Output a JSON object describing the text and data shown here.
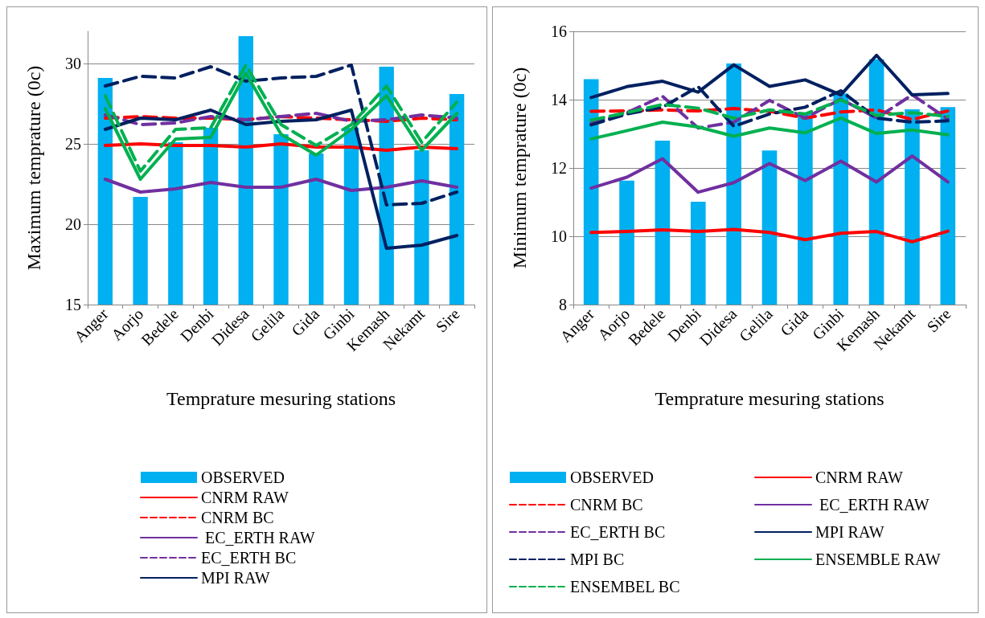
{
  "chart_data": [
    {
      "type": "bar",
      "xlabel": "Temprature mesuring stations",
      "ylabel": "Maximum temprature (0c)",
      "categories": [
        "Anger",
        "Aorjo",
        "Bedele",
        "Denbi",
        "Didesa",
        "Gelila",
        "Gida",
        "Ginbi",
        "Kemash",
        "Nekamt",
        "Sire"
      ],
      "ylim": [
        15,
        32
      ],
      "yticks": [
        15,
        20,
        25,
        30
      ],
      "grid": "y",
      "legend": "bottom",
      "marker": "none",
      "series": [
        {
          "name": "OBSERVED",
          "color": "#00b0f0",
          "values": [
            29.1,
            21.7,
            25.1,
            26.0,
            31.7,
            25.6,
            24.4,
            26.0,
            29.8,
            24.6,
            28.1
          ]
        },
        {
          "name": "CNRM RAW",
          "type": "line",
          "line_style": "solid",
          "color": "#ff0000",
          "values": [
            24.9,
            25.0,
            24.9,
            24.9,
            24.8,
            25.0,
            24.8,
            24.8,
            24.6,
            24.8,
            24.7
          ]
        },
        {
          "name": "CNRM BC",
          "type": "line",
          "line_style": "dashed",
          "color": "#ff0000",
          "values": [
            26.6,
            26.7,
            26.6,
            26.6,
            26.5,
            26.7,
            26.6,
            26.5,
            26.4,
            26.6,
            26.5
          ]
        },
        {
          "name": " EC_ERTH RAW",
          "type": "line",
          "line_style": "solid",
          "color": "#7030a0",
          "values": [
            22.8,
            22.0,
            22.2,
            22.6,
            22.3,
            22.3,
            22.8,
            22.1,
            22.3,
            22.7,
            22.3
          ]
        },
        {
          "name": "EC_ERTH BC",
          "type": "line",
          "line_style": "dashed",
          "color": "#7030a0",
          "values": [
            26.8,
            26.2,
            26.3,
            26.7,
            26.5,
            26.7,
            26.9,
            26.4,
            26.5,
            26.8,
            26.6
          ]
        },
        {
          "name": "MPI RAW",
          "type": "line",
          "line_style": "solid",
          "color": "#002060",
          "values": [
            25.9,
            26.6,
            26.5,
            27.1,
            26.2,
            26.4,
            26.5,
            27.1,
            18.5,
            18.7,
            19.3
          ]
        },
        {
          "type": "line",
          "line_style": "dashed",
          "color": "#002060",
          "values": [
            28.6,
            29.2,
            29.1,
            29.8,
            28.9,
            29.1,
            29.2,
            29.9,
            21.2,
            21.3,
            22.0
          ]
        },
        {
          "type": "line",
          "line_style": "solid",
          "color": "#00b050",
          "values": [
            27.2,
            22.8,
            25.3,
            25.4,
            29.4,
            25.6,
            24.3,
            25.9,
            28.0,
            24.6,
            26.9
          ]
        },
        {
          "type": "line",
          "line_style": "dashed",
          "color": "#00b050",
          "values": [
            28.0,
            23.3,
            25.9,
            26.0,
            29.9,
            26.2,
            24.9,
            26.2,
            28.6,
            25.1,
            27.6
          ]
        }
      ]
    },
    {
      "type": "bar",
      "xlabel": "Temprature mesuring stations",
      "ylabel": "Minimum temprature (0c)",
      "categories": [
        "Anger",
        "Aorjo",
        "Bedele",
        "Denbi",
        "Didesa",
        "Gelila",
        "Gida",
        "Ginbi",
        "Kemash",
        "Nekamt",
        "Sire"
      ],
      "ylim": [
        8,
        16
      ],
      "yticks": [
        8,
        10,
        12,
        14,
        16
      ],
      "grid": "y",
      "legend": "bottom",
      "marker": "none",
      "series": [
        {
          "name": "OBSERVED",
          "color": "#00b0f0",
          "values": [
            14.6,
            11.63,
            12.8,
            11.01,
            15.06,
            12.51,
            13.6,
            14.18,
            15.18,
            13.72,
            13.78
          ]
        },
        {
          "name": "CNRM RAW",
          "type": "line",
          "line_style": "solid",
          "color": "#ff0000",
          "values": [
            10.11,
            10.14,
            10.19,
            10.14,
            10.2,
            10.11,
            9.9,
            10.09,
            10.14,
            9.84,
            10.15
          ]
        },
        {
          "name": "CNRM BC",
          "type": "line",
          "line_style": "dashed",
          "color": "#ff0000",
          "values": [
            13.66,
            13.67,
            13.7,
            13.67,
            13.74,
            13.66,
            13.46,
            13.64,
            13.7,
            13.42,
            13.67
          ]
        },
        {
          "name": " EC_ERTH RAW",
          "type": "line",
          "line_style": "solid",
          "color": "#7030a0",
          "values": [
            11.41,
            11.73,
            12.27,
            11.29,
            11.57,
            12.13,
            11.63,
            12.2,
            11.59,
            12.35,
            11.59
          ]
        },
        {
          "name": "EC_ERTH BC",
          "type": "line",
          "line_style": "dashed",
          "color": "#7030a0",
          "values": [
            13.3,
            13.62,
            14.1,
            13.17,
            13.34,
            13.98,
            13.46,
            14.02,
            13.46,
            14.14,
            13.43
          ]
        },
        {
          "name": "MPI RAW",
          "type": "line",
          "line_style": "solid",
          "color": "#002060",
          "values": [
            14.06,
            14.38,
            14.54,
            14.22,
            15.02,
            14.39,
            14.58,
            14.14,
            15.3,
            14.14,
            14.18
          ]
        },
        {
          "name": "MPI BC",
          "type": "line",
          "line_style": "dashed",
          "color": "#002060",
          "values": [
            13.26,
            13.58,
            13.78,
            14.38,
            13.22,
            13.58,
            13.78,
            14.26,
            13.46,
            13.34,
            13.38
          ]
        },
        {
          "name": "ENSEMBLE RAW",
          "type": "line",
          "line_style": "solid",
          "color": "#00b050",
          "values": [
            12.85,
            13.09,
            13.34,
            13.2,
            12.93,
            13.17,
            13.03,
            13.46,
            13.01,
            13.11,
            12.97
          ]
        },
        {
          "name": "ENSEMBEL BC",
          "type": "line",
          "line_style": "dashed",
          "color": "#00b050",
          "values": [
            13.4,
            13.62,
            13.86,
            13.75,
            13.46,
            13.7,
            13.58,
            13.99,
            13.54,
            13.62,
            13.51
          ]
        }
      ]
    }
  ]
}
